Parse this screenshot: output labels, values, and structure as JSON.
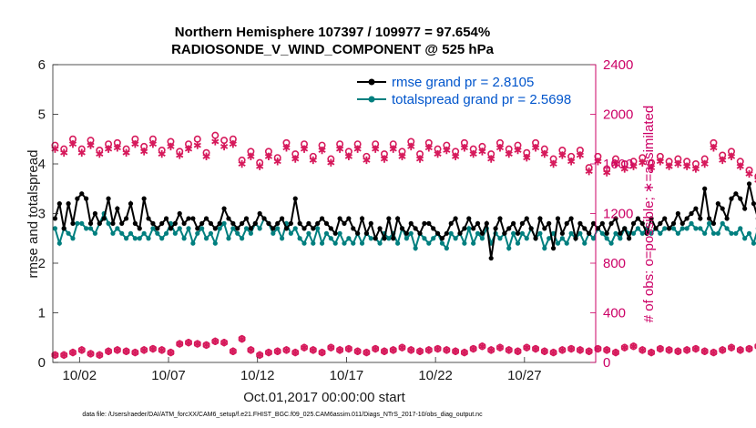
{
  "chart_data": {
    "type": "line",
    "title_line1": "Northern Hemisphere 107397 / 109977 = 97.654%",
    "title_line2": "RADIOSONDE_V_WIND_COMPONENT @ 525 hPa",
    "xlabel": "Oct.01,2017 00:00:00 start",
    "ylabel_left": "rmse and totalspread",
    "ylabel_right": "# of obs: o=possible; ∗=assimilated",
    "footnote": "data file: /Users/raeder/DAI/ATM_forcXX/CAM6_setup/f.e21.FHIST_BGC.f09_025.CAM6assim.011/Diags_NTrS_2017-10/obs_diag_output.nc",
    "xlim": [
      0.5,
      31.0
    ],
    "ylim_left": [
      0,
      6
    ],
    "ylim_right": [
      0,
      2400
    ],
    "x_tick_values": [
      2,
      7,
      12,
      17,
      22,
      27,
      32
    ],
    "x_tick_labels": [
      "10/02",
      "10/07",
      "10/12",
      "10/17",
      "10/22",
      "10/27",
      "11/01"
    ],
    "y_ticks_left": [
      "0",
      "1",
      "2",
      "3",
      "4",
      "5",
      "6"
    ],
    "y_ticks_right": [
      "0",
      "400",
      "800",
      "1200",
      "1600",
      "2000",
      "2400"
    ],
    "legend": [
      {
        "label": "rmse grand pr = 2.8105",
        "color": "#000000"
      },
      {
        "label": "totalspread grand pr = 2.5698",
        "color": "#007f7f"
      }
    ],
    "colors": {
      "rmse": "#000000",
      "spread": "#007f7f",
      "obs": "#d6195b",
      "right_axis": "#cc0066"
    },
    "series": [
      {
        "name": "rmse",
        "x_start": 0.625,
        "x_step": 0.25,
        "values": [
          2.9,
          3.2,
          2.7,
          3.2,
          2.8,
          3.3,
          3.4,
          3.3,
          2.8,
          3.0,
          2.8,
          2.9,
          3.3,
          2.8,
          3.1,
          2.8,
          2.9,
          3.2,
          2.8,
          2.7,
          3.3,
          2.9,
          2.8,
          2.7,
          2.8,
          2.9,
          2.7,
          2.8,
          3.0,
          2.8,
          2.9,
          2.9,
          2.7,
          2.8,
          2.9,
          2.8,
          2.7,
          2.8,
          3.1,
          2.9,
          2.8,
          2.7,
          2.8,
          2.9,
          2.7,
          2.8,
          3.0,
          2.9,
          2.8,
          2.7,
          2.8,
          2.9,
          2.7,
          2.8,
          3.3,
          2.8,
          2.7,
          2.8,
          2.7,
          2.8,
          2.9,
          2.8,
          2.7,
          2.6,
          2.9,
          2.8,
          2.9,
          2.7,
          2.6,
          2.9,
          2.6,
          2.8,
          2.5,
          2.7,
          2.5,
          2.9,
          2.5,
          2.9,
          2.7,
          2.6,
          2.8,
          2.7,
          2.6,
          2.8,
          2.8,
          2.7,
          2.6,
          2.5,
          2.6,
          2.8,
          2.9,
          2.6,
          2.7,
          2.9,
          2.7,
          2.8,
          2.6,
          2.8,
          2.1,
          2.7,
          2.9,
          2.6,
          2.7,
          2.8,
          2.6,
          2.8,
          2.9,
          2.7,
          2.5,
          2.9,
          2.7,
          2.8,
          2.3,
          2.9,
          2.6,
          2.8,
          2.9,
          2.5,
          2.8,
          2.7,
          2.6,
          2.8,
          2.7,
          2.8,
          2.6,
          2.8,
          2.9,
          2.6,
          2.7,
          2.5,
          2.8,
          2.9,
          2.8,
          2.6,
          2.9,
          2.7,
          2.8,
          2.9,
          2.7,
          2.8,
          3.0,
          2.8,
          2.9,
          3.0,
          3.1,
          2.9,
          3.5,
          2.9,
          2.8,
          3.2,
          3.1,
          2.9,
          3.3,
          3.4,
          3.3,
          3.1,
          3.6,
          3.2,
          2.9,
          3.1,
          3.2,
          2.8,
          2.7,
          2.8,
          2.1,
          2.9,
          2.9,
          2.8,
          2.9,
          2.9,
          2.8,
          2.7,
          2.8,
          2.7,
          2.9,
          2.6,
          2.8,
          3.1,
          2.8,
          2.7,
          2.9,
          2.8,
          2.8,
          2.6,
          2.9,
          2.8,
          2.8,
          2.9,
          2.9,
          2.8,
          2.7,
          2.9,
          3.0,
          2.9,
          2.8,
          2.9,
          3.7,
          2.9,
          2.7,
          3.6,
          3.2,
          3.0,
          3.6,
          2.8,
          3.2,
          2.9,
          2.8,
          2.4,
          3.0,
          2.7,
          2.8,
          3.2,
          2.8,
          3.0,
          3.0,
          2.5,
          2.8,
          2.9,
          2.0,
          1.9
        ]
      },
      {
        "name": "totalspread",
        "x_start": 0.625,
        "x_step": 0.25,
        "values": [
          2.7,
          2.4,
          2.7,
          2.6,
          2.5,
          2.8,
          2.8,
          2.7,
          2.7,
          2.6,
          2.8,
          3.0,
          2.8,
          2.6,
          2.7,
          2.6,
          2.5,
          2.6,
          2.5,
          2.5,
          2.6,
          2.5,
          2.7,
          2.6,
          2.5,
          2.6,
          2.8,
          2.6,
          2.7,
          2.5,
          2.7,
          2.4,
          2.6,
          2.7,
          2.5,
          2.6,
          2.4,
          2.7,
          2.8,
          2.5,
          2.7,
          2.6,
          2.5,
          2.7,
          2.6,
          2.8,
          2.7,
          2.9,
          2.8,
          2.6,
          2.7,
          2.5,
          2.8,
          2.6,
          2.7,
          2.5,
          2.4,
          2.6,
          2.4,
          2.7,
          2.4,
          2.6,
          2.5,
          2.4,
          2.6,
          2.4,
          2.5,
          2.4,
          2.6,
          2.4,
          2.6,
          2.5,
          2.5,
          2.4,
          2.6,
          2.5,
          2.6,
          2.4,
          2.7,
          2.5,
          2.6,
          2.3,
          2.6,
          2.5,
          2.4,
          2.5,
          2.6,
          2.4,
          2.3,
          2.6,
          2.5,
          2.6,
          2.4,
          2.7,
          2.4,
          2.6,
          2.5,
          2.7,
          2.4,
          2.6,
          2.5,
          2.6,
          2.3,
          2.6,
          2.4,
          2.6,
          2.5,
          2.7,
          2.5,
          2.6,
          2.3,
          2.5,
          2.6,
          2.4,
          2.5,
          2.4,
          2.6,
          2.5,
          2.6,
          2.4,
          2.6,
          2.5,
          2.7,
          2.6,
          2.5,
          2.4,
          2.6,
          2.5,
          2.7,
          2.6,
          2.6,
          2.7,
          2.6,
          2.7,
          2.6,
          2.7,
          2.6,
          2.7,
          2.7,
          2.7,
          2.6,
          2.7,
          2.7,
          2.8,
          2.7,
          2.7,
          2.6,
          2.8,
          2.6,
          2.6,
          2.8,
          2.7,
          2.6,
          2.6,
          2.7,
          2.5,
          2.6,
          2.4,
          2.7,
          2.5,
          2.6,
          2.4,
          2.6,
          2.5,
          2.7,
          2.4,
          2.6,
          2.5,
          2.7,
          2.4,
          2.6,
          2.5,
          2.4,
          2.6,
          2.5,
          2.7,
          2.4,
          2.6,
          2.5,
          2.7,
          2.5,
          2.6,
          2.4,
          2.6,
          2.7,
          2.4,
          2.6,
          2.5,
          2.4,
          2.6,
          2.5,
          2.7,
          2.4,
          2.6,
          2.5,
          2.7,
          2.5,
          2.6,
          2.7,
          2.5,
          2.6,
          2.4,
          2.7,
          2.5,
          2.6,
          2.4,
          2.7,
          2.5,
          2.8,
          3.0,
          3.1,
          2.7,
          2.5,
          2.6,
          2.8,
          2.7,
          2.6,
          2.7,
          2.5,
          2.6,
          2.5,
          2.2
        ]
      },
      {
        "name": "obs_possible",
        "x_start": 0.625,
        "x_step": 0.5,
        "values": [
          1750,
          1720,
          1800,
          1720,
          1790,
          1710,
          1760,
          1770,
          1720,
          1800,
          1740,
          1800,
          1710,
          1780,
          1700,
          1760,
          1800,
          1690,
          1830,
          1790,
          1800,
          1630,
          1700,
          1610,
          1700,
          1650,
          1770,
          1680,
          1760,
          1660,
          1750,
          1640,
          1760,
          1700,
          1760,
          1660,
          1760,
          1680,
          1760,
          1700,
          1780,
          1680,
          1770,
          1720,
          1750,
          1700,
          1770,
          1720,
          1740,
          1680,
          1770,
          1720,
          1750,
          1690,
          1770,
          1720,
          1640,
          1710,
          1660,
          1710,
          1570,
          1660,
          1560,
          1640,
          1600,
          1620,
          1650,
          1610,
          1660,
          1620,
          1640,
          1620,
          1600,
          1640,
          1770,
          1670,
          1700,
          1620,
          1550,
          1500,
          1550,
          1650,
          1480,
          1620,
          1600,
          1550,
          1610,
          1600,
          1550,
          1660
        ]
      },
      {
        "name": "obs_assimilated",
        "x_start": 0.625,
        "x_step": 0.5,
        "values": [
          1720,
          1690,
          1760,
          1690,
          1750,
          1680,
          1720,
          1730,
          1690,
          1760,
          1700,
          1760,
          1680,
          1740,
          1670,
          1720,
          1750,
          1660,
          1780,
          1740,
          1760,
          1600,
          1660,
          1580,
          1660,
          1620,
          1730,
          1640,
          1720,
          1630,
          1710,
          1610,
          1720,
          1660,
          1720,
          1630,
          1720,
          1640,
          1720,
          1660,
          1740,
          1640,
          1730,
          1680,
          1710,
          1660,
          1730,
          1680,
          1700,
          1640,
          1730,
          1680,
          1710,
          1650,
          1730,
          1680,
          1600,
          1670,
          1620,
          1670,
          1540,
          1620,
          1530,
          1600,
          1560,
          1580,
          1610,
          1570,
          1620,
          1580,
          1600,
          1580,
          1560,
          1600,
          1730,
          1630,
          1660,
          1580,
          1520,
          1470,
          1520,
          1610,
          1450,
          1580,
          1560,
          1520,
          1570,
          1560,
          1510,
          1620
        ]
      },
      {
        "name": "obs_low_possible",
        "x_start": 0.625,
        "x_step": 0.5,
        "values": [
          60,
          60,
          80,
          100,
          70,
          60,
          90,
          100,
          90,
          80,
          100,
          110,
          100,
          80,
          150,
          160,
          150,
          140,
          170,
          160,
          90,
          190,
          100,
          60,
          80,
          90,
          100,
          80,
          120,
          100,
          80,
          120,
          100,
          110,
          90,
          80,
          110,
          90,
          100,
          120,
          100,
          90,
          100,
          110,
          100,
          90,
          80,
          110,
          130,
          100,
          120,
          100,
          90,
          120,
          110,
          90,
          80,
          100,
          110,
          100,
          90,
          110,
          100,
          80,
          120,
          130,
          100,
          80,
          110,
          100,
          90,
          100,
          110,
          90,
          80,
          100,
          120,
          100,
          110,
          130,
          90,
          80,
          100,
          110,
          90,
          120,
          100,
          110,
          80,
          100
        ]
      },
      {
        "name": "obs_low_assimilated",
        "x_start": 0.625,
        "x_step": 0.5,
        "values": [
          60,
          60,
          80,
          100,
          70,
          60,
          90,
          100,
          90,
          80,
          100,
          110,
          100,
          80,
          150,
          160,
          150,
          140,
          170,
          160,
          90,
          190,
          100,
          60,
          80,
          90,
          100,
          80,
          120,
          100,
          80,
          120,
          100,
          110,
          90,
          80,
          110,
          90,
          100,
          120,
          100,
          90,
          100,
          110,
          100,
          90,
          80,
          110,
          130,
          100,
          120,
          100,
          90,
          120,
          110,
          90,
          80,
          100,
          110,
          100,
          90,
          110,
          100,
          80,
          120,
          130,
          100,
          80,
          110,
          100,
          90,
          100,
          110,
          90,
          80,
          100,
          120,
          100,
          110,
          130,
          90,
          80,
          100,
          110,
          90,
          120,
          100,
          110,
          80,
          100
        ]
      }
    ]
  }
}
